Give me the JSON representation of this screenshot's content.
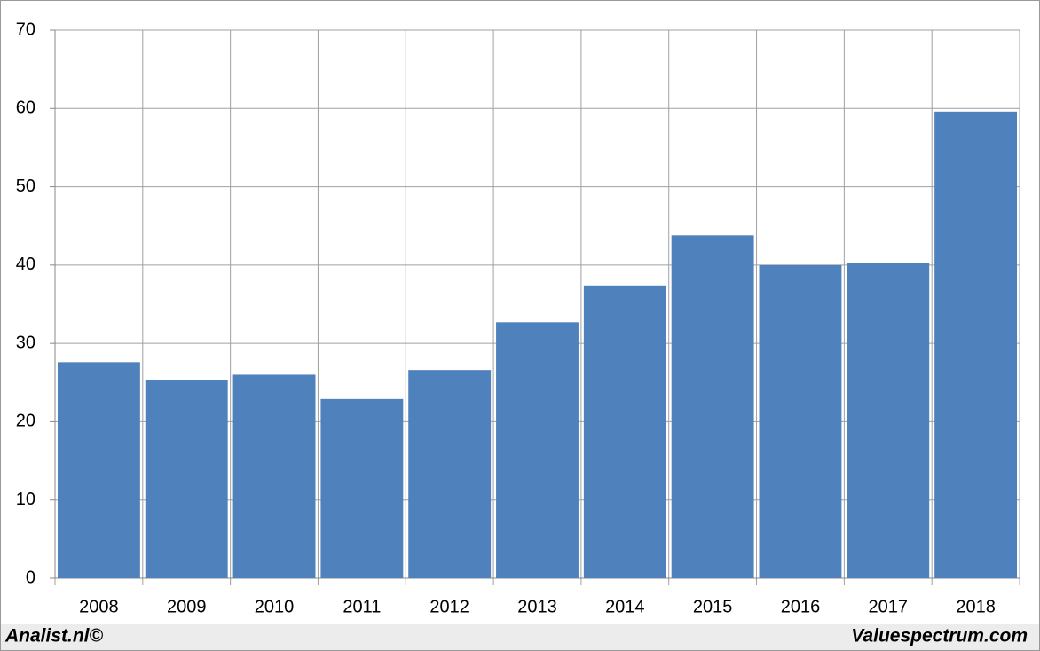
{
  "chart_data": {
    "type": "bar",
    "categories": [
      "2008",
      "2009",
      "2010",
      "2011",
      "2012",
      "2013",
      "2014",
      "2015",
      "2016",
      "2017",
      "2018"
    ],
    "values": [
      27.6,
      25.3,
      26.0,
      22.9,
      26.6,
      32.7,
      37.4,
      43.8,
      40.0,
      40.3,
      59.6
    ],
    "color": "#4f81bd",
    "ylim": [
      0,
      70
    ],
    "yticks": [
      0,
      10,
      20,
      30,
      40,
      50,
      60,
      70
    ],
    "grid": true,
    "footer": [
      "Analist.nl©",
      "Valuespectrum.com"
    ]
  }
}
